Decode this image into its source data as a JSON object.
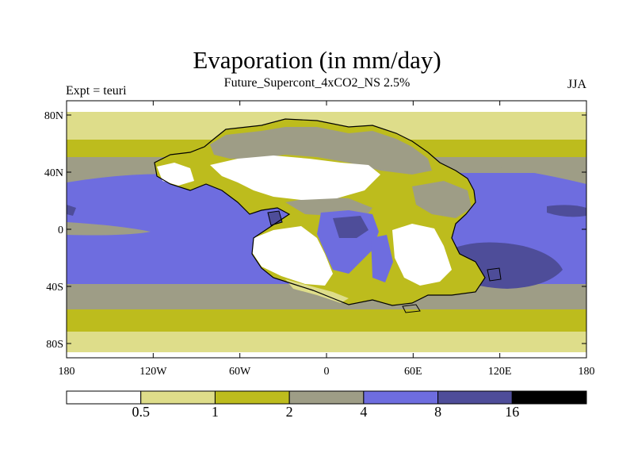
{
  "title": "Evaporation (in mm/day)",
  "subtitle": "Future_Supercont_4xCO2_NS 2.5%",
  "left_label": "Expt = teuri",
  "right_label": "JJA",
  "colors": {
    "white": "#ffffff",
    "light_yellow": "#dedd8a",
    "olive": "#bdbc1d",
    "gray": "#9e9d86",
    "light_blue": "#6e6ddf",
    "dark_blue": "#4e4d99",
    "black": "#000000",
    "coast": "#000000"
  },
  "map": {
    "lon_ticks": [
      {
        "value": -180,
        "label": "180"
      },
      {
        "value": -120,
        "label": "120W"
      },
      {
        "value": -60,
        "label": "60W"
      },
      {
        "value": 0,
        "label": "0"
      },
      {
        "value": 60,
        "label": "60E"
      },
      {
        "value": 120,
        "label": "120E"
      },
      {
        "value": 180,
        "label": "180"
      }
    ],
    "lat_ticks": [
      {
        "value": 80,
        "label": "80N"
      },
      {
        "value": 40,
        "label": "40N"
      },
      {
        "value": 0,
        "label": "0"
      },
      {
        "value": -40,
        "label": "40S"
      },
      {
        "value": -80,
        "label": "80S"
      }
    ],
    "lon_range": [
      -180,
      180
    ],
    "lat_range": [
      -90,
      90
    ]
  },
  "colorbar": {
    "bins": [
      "white",
      "light_yellow",
      "olive",
      "gray",
      "light_blue",
      "dark_blue",
      "black"
    ],
    "labels": [
      "0.5",
      "1",
      "2",
      "4",
      "8",
      "16"
    ]
  }
}
